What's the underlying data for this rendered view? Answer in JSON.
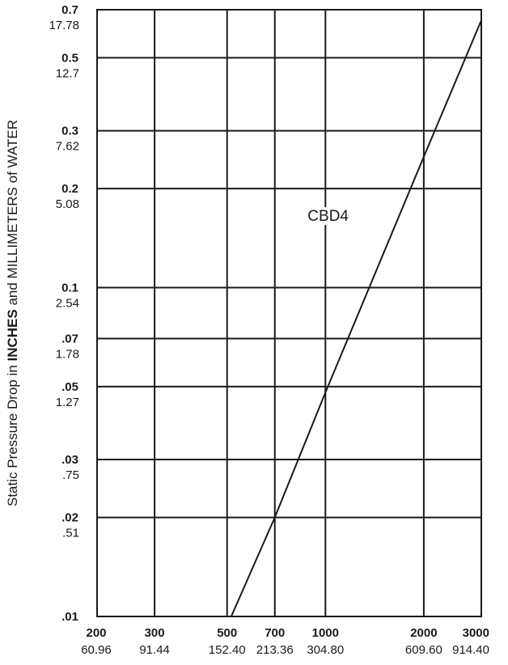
{
  "chart_data": {
    "type": "line",
    "xscale": "log",
    "yscale": "log",
    "xlim": [
      200,
      3000
    ],
    "ylim": [
      0.01,
      0.7
    ],
    "grid": true,
    "ylabel": {
      "prefix": "Static Pressure Drop in ",
      "bold": "INCHES",
      "suffix": " and MILLIMETERS of WATER"
    },
    "y_ticks": [
      {
        "value": 0.01,
        "primary": ".01",
        "secondary": ""
      },
      {
        "value": 0.02,
        "primary": ".02",
        "secondary": ".51"
      },
      {
        "value": 0.03,
        "primary": ".03",
        "secondary": ".75"
      },
      {
        "value": 0.05,
        "primary": ".05",
        "secondary": "1.27"
      },
      {
        "value": 0.07,
        "primary": ".07",
        "secondary": "1.78"
      },
      {
        "value": 0.1,
        "primary": "0.1",
        "secondary": "2.54"
      },
      {
        "value": 0.2,
        "primary": "0.2",
        "secondary": "5.08"
      },
      {
        "value": 0.3,
        "primary": "0.3",
        "secondary": "7.62"
      },
      {
        "value": 0.5,
        "primary": "0.5",
        "secondary": "12.7"
      },
      {
        "value": 0.7,
        "primary": "0.7",
        "secondary": "17.78"
      }
    ],
    "x_ticks": [
      {
        "value": 200,
        "primary": "200",
        "secondary": "60.96"
      },
      {
        "value": 300,
        "primary": "300",
        "secondary": "91.44"
      },
      {
        "value": 500,
        "primary": "500",
        "secondary": "152.40"
      },
      {
        "value": 700,
        "primary": "700",
        "secondary": "213.36"
      },
      {
        "value": 1000,
        "primary": "1000",
        "secondary": "304.80"
      },
      {
        "value": 2000,
        "primary": "2000",
        "secondary": "609.60"
      },
      {
        "value": 3000,
        "primary": "3000",
        "secondary": "914.40"
      }
    ],
    "series": [
      {
        "name": "CBD4",
        "x": [
          515,
          700,
          1000,
          2000,
          3000
        ],
        "y": [
          0.01,
          0.02,
          0.048,
          0.25,
          0.65
        ]
      }
    ],
    "annotations": [
      {
        "text": "CBD4",
        "x": 1000,
        "y": 0.2
      }
    ]
  }
}
